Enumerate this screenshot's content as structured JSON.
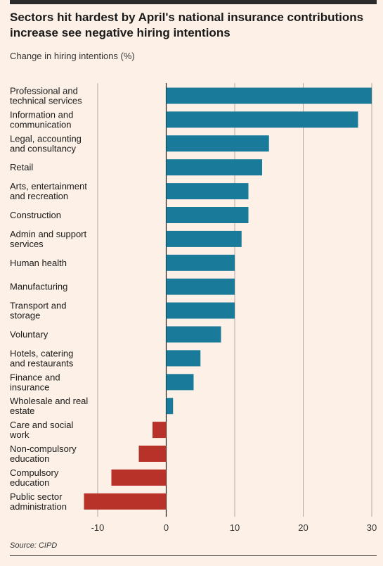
{
  "header": {
    "title": "Sectors hit hardest by April's national insurance contributions increase see negative hiring intentions",
    "subtitle": "Change in hiring intentions (%)"
  },
  "footer": {
    "source": "Source: CIPD"
  },
  "colors": {
    "positive": "#1a7a9a",
    "negative": "#b8322a",
    "background": "#fdf0e6",
    "gridline": "#1a1a1a"
  },
  "chart_data": {
    "type": "bar",
    "orientation": "horizontal",
    "title": "Sectors hit hardest by April's national insurance contributions increase see negative hiring intentions",
    "subtitle": "Change in hiring intentions (%)",
    "categories": [
      [
        "Professional and",
        "technical services"
      ],
      [
        "Information and",
        "communication"
      ],
      [
        "Legal, accounting",
        "and consultancy"
      ],
      [
        "Retail"
      ],
      [
        "Arts, entertainment",
        "and recreation"
      ],
      [
        "Construction"
      ],
      [
        "Admin and support",
        "services"
      ],
      [
        "Human health"
      ],
      [
        "Manufacturing"
      ],
      [
        "Transport and",
        "storage"
      ],
      [
        "Voluntary"
      ],
      [
        "Hotels, catering",
        "and restaurants"
      ],
      [
        "Finance and",
        "insurance"
      ],
      [
        "Wholesale and real",
        "estate"
      ],
      [
        "Care and social",
        "work"
      ],
      [
        "Non-compulsory",
        "education"
      ],
      [
        "Compulsory",
        "education"
      ],
      [
        "Public sector",
        "administration"
      ]
    ],
    "values": [
      30,
      28,
      15,
      14,
      12,
      12,
      11,
      10,
      10,
      10,
      8,
      5,
      4,
      1,
      -2,
      -4,
      -8,
      -12
    ],
    "xlim": [
      -12,
      30
    ],
    "xticks": [
      "-10",
      "0",
      "10",
      "20",
      "30"
    ],
    "xtick_values": [
      -10,
      0,
      10,
      20,
      30
    ],
    "grid": "vertical",
    "source": "Source: CIPD"
  }
}
